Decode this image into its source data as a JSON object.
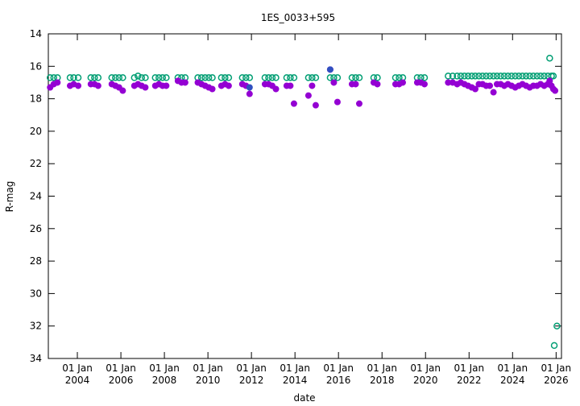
{
  "chart_data": {
    "type": "scatter",
    "title": "1ES_0033+595",
    "xlabel": "date",
    "ylabel": "R-mag",
    "ylim": [
      14,
      34
    ],
    "y_inverted": true,
    "y_ticks": [
      "14",
      "16",
      "18",
      "20",
      "22",
      "24",
      "26",
      "28",
      "30",
      "32",
      "34"
    ],
    "xlim": [
      "2002-09-01",
      "2026-04-01"
    ],
    "x_ticks": [
      {
        "top": "01 Jan",
        "bottom": "2004",
        "date": "2004-01-01"
      },
      {
        "top": "01 Jan",
        "bottom": "2006",
        "date": "2006-01-01"
      },
      {
        "top": "01 Jan",
        "bottom": "2008",
        "date": "2008-01-01"
      },
      {
        "top": "01 Jan",
        "bottom": "2010",
        "date": "2010-01-01"
      },
      {
        "top": "01 Jan",
        "bottom": "2012",
        "date": "2012-01-01"
      },
      {
        "top": "01 Jan",
        "bottom": "2014",
        "date": "2014-01-01"
      },
      {
        "top": "01 Jan",
        "bottom": "2016",
        "date": "2016-01-01"
      },
      {
        "top": "01 Jan",
        "bottom": "2018",
        "date": "2018-01-01"
      },
      {
        "top": "01 Jan",
        "bottom": "2020",
        "date": "2020-01-01"
      },
      {
        "top": "01 Jan",
        "bottom": "2022",
        "date": "2022-01-01"
      },
      {
        "top": "01 Jan",
        "bottom": "2024",
        "date": "2024-01-01"
      },
      {
        "top": "01 Jan",
        "bottom": "2026",
        "date": "2026-01-01"
      }
    ],
    "grid": false,
    "series": [
      {
        "style": "open-circle",
        "color": "#009e73",
        "points": [
          {
            "x": "2002-10-01",
            "y": 16.7
          },
          {
            "x": "2002-12-01",
            "y": 16.7
          },
          {
            "x": "2003-02-01",
            "y": 16.7
          },
          {
            "x": "2003-09-01",
            "y": 16.7
          },
          {
            "x": "2003-11-01",
            "y": 16.7
          },
          {
            "x": "2004-01-15",
            "y": 16.7
          },
          {
            "x": "2004-08-15",
            "y": 16.7
          },
          {
            "x": "2004-10-15",
            "y": 16.7
          },
          {
            "x": "2004-12-15",
            "y": 16.7
          },
          {
            "x": "2005-08-01",
            "y": 16.7
          },
          {
            "x": "2005-10-01",
            "y": 16.7
          },
          {
            "x": "2005-12-01",
            "y": 16.7
          },
          {
            "x": "2006-02-01",
            "y": 16.7
          },
          {
            "x": "2006-08-15",
            "y": 16.7
          },
          {
            "x": "2006-10-15",
            "y": 16.6
          },
          {
            "x": "2006-12-15",
            "y": 16.7
          },
          {
            "x": "2007-02-15",
            "y": 16.7
          },
          {
            "x": "2007-08-01",
            "y": 16.7
          },
          {
            "x": "2007-10-01",
            "y": 16.7
          },
          {
            "x": "2007-12-01",
            "y": 16.7
          },
          {
            "x": "2008-02-01",
            "y": 16.7
          },
          {
            "x": "2008-08-15",
            "y": 16.7
          },
          {
            "x": "2008-10-15",
            "y": 16.7
          },
          {
            "x": "2008-12-15",
            "y": 16.7
          },
          {
            "x": "2009-07-15",
            "y": 16.7
          },
          {
            "x": "2009-09-15",
            "y": 16.7
          },
          {
            "x": "2009-11-15",
            "y": 16.7
          },
          {
            "x": "2010-01-15",
            "y": 16.7
          },
          {
            "x": "2010-03-15",
            "y": 16.7
          },
          {
            "x": "2010-08-15",
            "y": 16.7
          },
          {
            "x": "2010-10-15",
            "y": 16.7
          },
          {
            "x": "2010-12-15",
            "y": 16.7
          },
          {
            "x": "2011-08-01",
            "y": 16.7
          },
          {
            "x": "2011-10-01",
            "y": 16.7
          },
          {
            "x": "2011-12-01",
            "y": 16.7
          },
          {
            "x": "2012-08-15",
            "y": 16.7
          },
          {
            "x": "2012-10-15",
            "y": 16.7
          },
          {
            "x": "2012-12-15",
            "y": 16.7
          },
          {
            "x": "2013-02-15",
            "y": 16.7
          },
          {
            "x": "2013-08-15",
            "y": 16.7
          },
          {
            "x": "2013-10-15",
            "y": 16.7
          },
          {
            "x": "2013-12-15",
            "y": 16.7
          },
          {
            "x": "2014-08-15",
            "y": 16.7
          },
          {
            "x": "2014-10-15",
            "y": 16.7
          },
          {
            "x": "2014-12-15",
            "y": 16.7
          },
          {
            "x": "2015-08-15",
            "y": 16.7
          },
          {
            "x": "2015-10-15",
            "y": 16.7
          },
          {
            "x": "2015-12-15",
            "y": 16.7
          },
          {
            "x": "2016-08-15",
            "y": 16.7
          },
          {
            "x": "2016-10-15",
            "y": 16.7
          },
          {
            "x": "2016-12-15",
            "y": 16.7
          },
          {
            "x": "2017-08-15",
            "y": 16.7
          },
          {
            "x": "2017-10-15",
            "y": 16.7
          },
          {
            "x": "2018-08-15",
            "y": 16.7
          },
          {
            "x": "2018-10-15",
            "y": 16.7
          },
          {
            "x": "2018-12-15",
            "y": 16.7
          },
          {
            "x": "2019-08-15",
            "y": 16.7
          },
          {
            "x": "2019-10-15",
            "y": 16.7
          },
          {
            "x": "2019-12-15",
            "y": 16.7
          },
          {
            "x": "2021-01-15",
            "y": 16.6
          },
          {
            "x": "2021-04-01",
            "y": 16.6
          },
          {
            "x": "2021-06-15",
            "y": 16.6
          },
          {
            "x": "2021-08-15",
            "y": 16.6
          },
          {
            "x": "2021-10-15",
            "y": 16.6
          },
          {
            "x": "2021-12-15",
            "y": 16.6
          },
          {
            "x": "2022-02-15",
            "y": 16.6
          },
          {
            "x": "2022-04-15",
            "y": 16.6
          },
          {
            "x": "2022-06-15",
            "y": 16.6
          },
          {
            "x": "2022-08-15",
            "y": 16.6
          },
          {
            "x": "2022-10-15",
            "y": 16.6
          },
          {
            "x": "2022-12-15",
            "y": 16.6
          },
          {
            "x": "2023-02-15",
            "y": 16.6
          },
          {
            "x": "2023-04-15",
            "y": 16.6
          },
          {
            "x": "2023-06-15",
            "y": 16.6
          },
          {
            "x": "2023-08-15",
            "y": 16.6
          },
          {
            "x": "2023-10-15",
            "y": 16.6
          },
          {
            "x": "2023-12-15",
            "y": 16.6
          },
          {
            "x": "2024-02-15",
            "y": 16.6
          },
          {
            "x": "2024-04-15",
            "y": 16.6
          },
          {
            "x": "2024-06-15",
            "y": 16.6
          },
          {
            "x": "2024-08-15",
            "y": 16.6
          },
          {
            "x": "2024-10-15",
            "y": 16.6
          },
          {
            "x": "2024-12-15",
            "y": 16.6
          },
          {
            "x": "2025-02-15",
            "y": 16.6
          },
          {
            "x": "2025-04-15",
            "y": 16.6
          },
          {
            "x": "2025-06-15",
            "y": 16.6
          },
          {
            "x": "2025-08-15",
            "y": 16.6
          },
          {
            "x": "2025-09-15",
            "y": 15.5
          },
          {
            "x": "2025-10-15",
            "y": 16.6
          },
          {
            "x": "2025-11-15",
            "y": 16.6
          },
          {
            "x": "2025-12-01",
            "y": 33.2
          },
          {
            "x": "2026-01-15",
            "y": 32.0
          }
        ]
      },
      {
        "style": "filled-circle",
        "color": "#9400d3",
        "points": [
          {
            "x": "2002-10-01",
            "y": 17.3
          },
          {
            "x": "2002-12-01",
            "y": 17.1
          },
          {
            "x": "2003-02-01",
            "y": 17.0
          },
          {
            "x": "2003-09-01",
            "y": 17.2
          },
          {
            "x": "2003-11-01",
            "y": 17.1
          },
          {
            "x": "2004-01-15",
            "y": 17.2
          },
          {
            "x": "2004-08-15",
            "y": 17.1
          },
          {
            "x": "2004-10-15",
            "y": 17.1
          },
          {
            "x": "2004-12-15",
            "y": 17.2
          },
          {
            "x": "2005-08-01",
            "y": 17.1
          },
          {
            "x": "2005-10-01",
            "y": 17.2
          },
          {
            "x": "2005-12-01",
            "y": 17.3
          },
          {
            "x": "2006-02-01",
            "y": 17.5
          },
          {
            "x": "2006-08-15",
            "y": 17.2
          },
          {
            "x": "2006-10-15",
            "y": 17.1
          },
          {
            "x": "2006-12-15",
            "y": 17.2
          },
          {
            "x": "2007-02-15",
            "y": 17.3
          },
          {
            "x": "2007-08-01",
            "y": 17.2
          },
          {
            "x": "2007-10-01",
            "y": 17.1
          },
          {
            "x": "2007-12-01",
            "y": 17.2
          },
          {
            "x": "2008-02-01",
            "y": 17.2
          },
          {
            "x": "2008-08-15",
            "y": 16.9
          },
          {
            "x": "2008-10-15",
            "y": 17.0
          },
          {
            "x": "2008-12-15",
            "y": 17.0
          },
          {
            "x": "2009-07-15",
            "y": 17.0
          },
          {
            "x": "2009-09-15",
            "y": 17.1
          },
          {
            "x": "2009-11-15",
            "y": 17.2
          },
          {
            "x": "2010-01-15",
            "y": 17.3
          },
          {
            "x": "2010-03-15",
            "y": 17.4
          },
          {
            "x": "2010-08-15",
            "y": 17.2
          },
          {
            "x": "2010-10-15",
            "y": 17.1
          },
          {
            "x": "2010-12-15",
            "y": 17.2
          },
          {
            "x": "2011-08-01",
            "y": 17.1
          },
          {
            "x": "2011-10-01",
            "y": 17.2
          },
          {
            "x": "2011-12-01",
            "y": 17.7
          },
          {
            "x": "2012-08-15",
            "y": 17.1
          },
          {
            "x": "2012-10-15",
            "y": 17.1
          },
          {
            "x": "2012-12-15",
            "y": 17.2
          },
          {
            "x": "2013-02-15",
            "y": 17.4
          },
          {
            "x": "2013-08-15",
            "y": 17.2
          },
          {
            "x": "2013-10-15",
            "y": 17.2
          },
          {
            "x": "2013-12-15",
            "y": 18.3
          },
          {
            "x": "2014-08-15",
            "y": 17.8
          },
          {
            "x": "2014-10-15",
            "y": 17.2
          },
          {
            "x": "2014-12-15",
            "y": 18.4
          },
          {
            "x": "2015-08-15",
            "y": 16.2
          },
          {
            "x": "2015-10-15",
            "y": 17.0
          },
          {
            "x": "2015-12-15",
            "y": 18.2
          },
          {
            "x": "2016-08-15",
            "y": 17.1
          },
          {
            "x": "2016-10-15",
            "y": 17.1
          },
          {
            "x": "2016-12-15",
            "y": 18.3
          },
          {
            "x": "2017-08-15",
            "y": 17.0
          },
          {
            "x": "2017-10-15",
            "y": 17.1
          },
          {
            "x": "2018-08-15",
            "y": 17.1
          },
          {
            "x": "2018-10-15",
            "y": 17.1
          },
          {
            "x": "2018-12-15",
            "y": 17.0
          },
          {
            "x": "2019-08-15",
            "y": 17.0
          },
          {
            "x": "2019-10-15",
            "y": 17.0
          },
          {
            "x": "2019-12-15",
            "y": 17.1
          },
          {
            "x": "2021-01-15",
            "y": 17.0
          },
          {
            "x": "2021-04-01",
            "y": 17.0
          },
          {
            "x": "2021-06-15",
            "y": 17.1
          },
          {
            "x": "2021-08-15",
            "y": 17.0
          },
          {
            "x": "2021-10-15",
            "y": 17.1
          },
          {
            "x": "2021-12-15",
            "y": 17.2
          },
          {
            "x": "2022-02-15",
            "y": 17.3
          },
          {
            "x": "2022-04-15",
            "y": 17.4
          },
          {
            "x": "2022-06-15",
            "y": 17.1
          },
          {
            "x": "2022-08-15",
            "y": 17.1
          },
          {
            "x": "2022-10-15",
            "y": 17.2
          },
          {
            "x": "2022-12-15",
            "y": 17.2
          },
          {
            "x": "2023-02-15",
            "y": 17.6
          },
          {
            "x": "2023-04-15",
            "y": 17.1
          },
          {
            "x": "2023-06-15",
            "y": 17.1
          },
          {
            "x": "2023-08-15",
            "y": 17.2
          },
          {
            "x": "2023-10-15",
            "y": 17.1
          },
          {
            "x": "2023-12-15",
            "y": 17.2
          },
          {
            "x": "2024-02-15",
            "y": 17.3
          },
          {
            "x": "2024-04-15",
            "y": 17.2
          },
          {
            "x": "2024-06-15",
            "y": 17.1
          },
          {
            "x": "2024-08-15",
            "y": 17.2
          },
          {
            "x": "2024-10-15",
            "y": 17.3
          },
          {
            "x": "2024-12-15",
            "y": 17.2
          },
          {
            "x": "2025-02-15",
            "y": 17.2
          },
          {
            "x": "2025-04-15",
            "y": 17.1
          },
          {
            "x": "2025-06-15",
            "y": 17.2
          },
          {
            "x": "2025-08-15",
            "y": 17.1
          },
          {
            "x": "2025-09-15",
            "y": 16.9
          },
          {
            "x": "2025-10-15",
            "y": 17.2
          },
          {
            "x": "2025-11-15",
            "y": 17.4
          },
          {
            "x": "2025-12-15",
            "y": 17.5
          }
        ]
      },
      {
        "style": "filled-circle",
        "color": "#3050c0",
        "points": [
          {
            "x": "2011-12-01",
            "y": 17.3
          },
          {
            "x": "2015-08-15",
            "y": 16.2
          }
        ]
      }
    ]
  }
}
